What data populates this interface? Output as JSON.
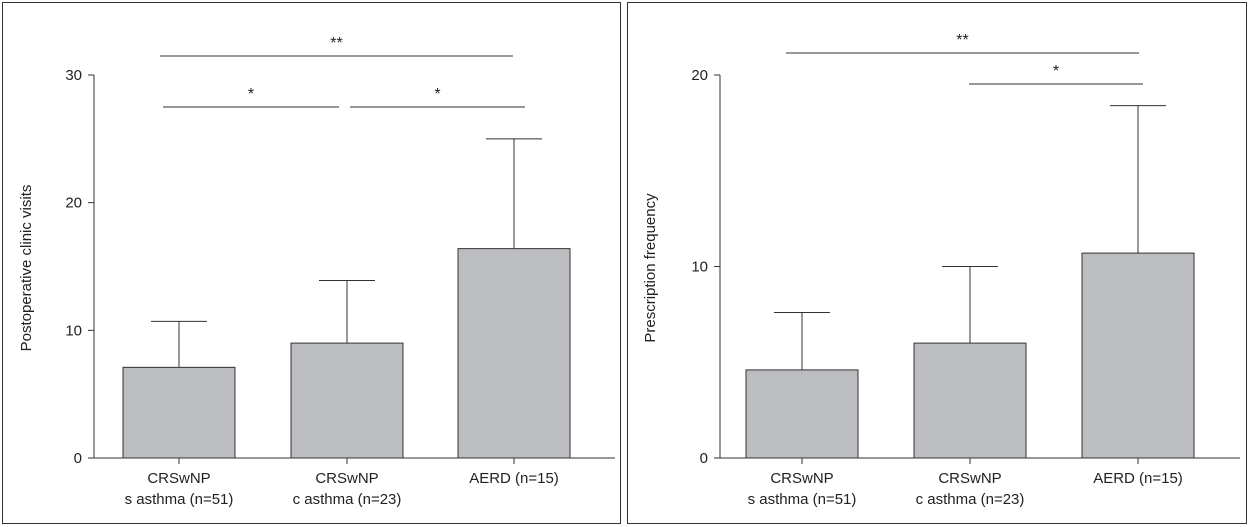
{
  "chart_data": [
    {
      "type": "bar",
      "categories": [
        [
          "CRSwNP",
          "s asthma (n=51)"
        ],
        [
          "CRSwNP",
          "c asthma (n=23)"
        ],
        [
          "AERD (n=15)"
        ]
      ],
      "values": [
        7.1,
        9.0,
        16.4
      ],
      "error_upper": [
        10.7,
        13.9,
        25.0
      ],
      "ylabel": "Postoperative clinic visits",
      "ylim": [
        0,
        30
      ],
      "yticks": [
        0,
        10,
        20,
        30
      ],
      "bar_color": "#bcbdc0",
      "significance": [
        {
          "from": 0,
          "to": 2,
          "label": "**"
        },
        {
          "from": 0,
          "to": 1,
          "label": "*"
        },
        {
          "from": 1,
          "to": 2,
          "label": "*"
        }
      ]
    },
    {
      "type": "bar",
      "categories": [
        [
          "CRSwNP",
          "s asthma (n=51)"
        ],
        [
          "CRSwNP",
          "c asthma (n=23)"
        ],
        [
          "AERD (n=15)"
        ]
      ],
      "values": [
        4.6,
        6.0,
        10.7
      ],
      "error_upper": [
        7.6,
        10.0,
        18.4
      ],
      "ylabel": "Prescription frequency",
      "ylim": [
        0,
        20
      ],
      "yticks": [
        0,
        10,
        20
      ],
      "bar_color": "#bcbdc0",
      "significance": [
        {
          "from": 0,
          "to": 2,
          "label": "**"
        },
        {
          "from": 1,
          "to": 2,
          "label": "*"
        }
      ]
    }
  ]
}
